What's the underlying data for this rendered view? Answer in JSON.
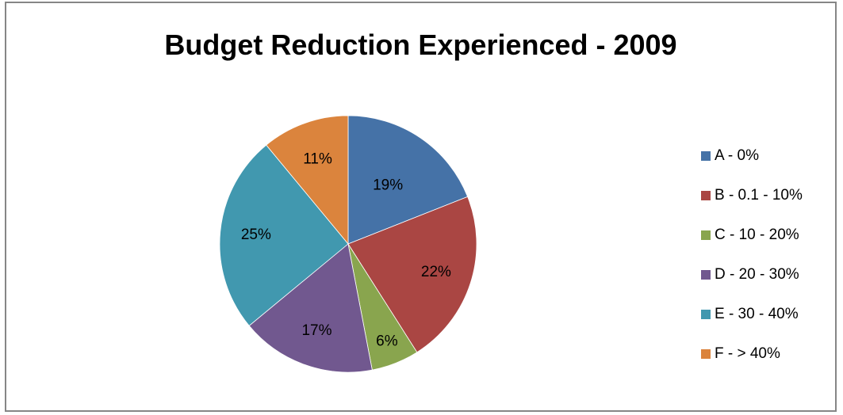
{
  "chart_data": {
    "type": "pie",
    "title": "Budget Reduction Experienced - 2009",
    "legend_position": "right",
    "categories": [
      "A - 0%",
      "B - 0.1 - 10%",
      "C - 10 - 20%",
      "D - 20 - 30%",
      "E - 30 - 40%",
      "F - > 40%"
    ],
    "values": [
      19,
      22,
      6,
      17,
      25,
      11
    ],
    "data_labels": [
      "19%",
      "22%",
      "6%",
      "17%",
      "25%",
      "11%"
    ],
    "colors": [
      "#4572A7",
      "#AA4643",
      "#89A54E",
      "#71588F",
      "#4198AF",
      "#DB843D"
    ]
  }
}
